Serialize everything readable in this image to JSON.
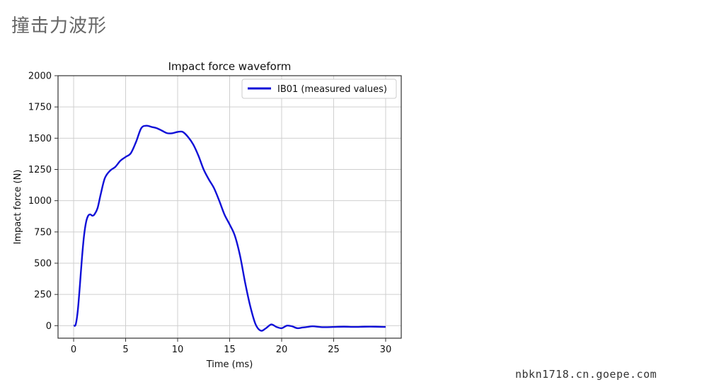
{
  "page": {
    "title": "撞击力波形",
    "watermark": "nbkn1718.cn.goepe.com"
  },
  "colors": {
    "series": "#1010d8",
    "grid": "#cfcfcf",
    "frame": "#333333"
  },
  "chart_data": {
    "type": "line",
    "title": "Impact force waveform",
    "xlabel": "Time (ms)",
    "ylabel": "Impact force (N)",
    "xlim": [
      -1.5,
      31.5
    ],
    "ylim": [
      -100,
      2000
    ],
    "xticks": [
      0,
      5,
      10,
      15,
      20,
      25,
      30
    ],
    "yticks": [
      0,
      250,
      500,
      750,
      1000,
      1250,
      1500,
      1750,
      2000
    ],
    "grid": true,
    "legend_position": "top-right",
    "series": [
      {
        "name": "IB01 (measured values)",
        "color": "#1010d8",
        "x": [
          0,
          0.2,
          0.4,
          0.6,
          0.8,
          1.0,
          1.2,
          1.4,
          1.6,
          1.8,
          2.0,
          2.3,
          2.6,
          3.0,
          3.5,
          4.0,
          4.5,
          5.0,
          5.5,
          6.0,
          6.5,
          7.0,
          7.5,
          8.0,
          8.5,
          9.0,
          9.5,
          10.0,
          10.5,
          11.0,
          11.5,
          12.0,
          12.5,
          13.0,
          13.5,
          14.0,
          14.5,
          15.0,
          15.5,
          16.0,
          16.5,
          17.0,
          17.5,
          18.0,
          18.5,
          19.0,
          19.5,
          20.0,
          20.5,
          21.0,
          21.5,
          22.0,
          22.5,
          23.0,
          24.0,
          25.0,
          26.0,
          27.0,
          28.0,
          29.0,
          30.0
        ],
        "y": [
          0,
          10,
          120,
          320,
          540,
          720,
          830,
          880,
          890,
          880,
          890,
          940,
          1050,
          1180,
          1240,
          1270,
          1320,
          1350,
          1380,
          1470,
          1580,
          1600,
          1590,
          1580,
          1560,
          1540,
          1540,
          1550,
          1550,
          1510,
          1450,
          1360,
          1250,
          1170,
          1100,
          1000,
          890,
          810,
          720,
          560,
          340,
          150,
          10,
          -40,
          -20,
          10,
          -10,
          -20,
          0,
          -5,
          -20,
          -15,
          -10,
          -5,
          -12,
          -10,
          -8,
          -10,
          -8,
          -8,
          -10
        ]
      }
    ]
  }
}
